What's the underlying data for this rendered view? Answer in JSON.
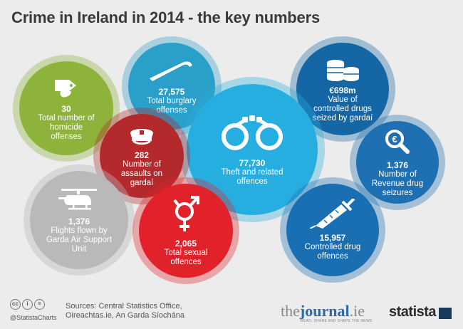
{
  "title": "Crime in Ireland in 2014 - the key numbers",
  "bubbles": {
    "homicide": {
      "value": "30",
      "label": "Total number of homicide offenses",
      "color": "#8db33a",
      "icon": "toe-tag-icon"
    },
    "burglary": {
      "value": "27,575",
      "label": "Total burglary offenses",
      "color": "#2a9fc9",
      "icon": "crowbar-icon"
    },
    "assaults": {
      "value": "282",
      "label": "Number of assaults on gardaí",
      "color": "#b3292c",
      "icon": "police-cap-icon"
    },
    "theft": {
      "value": "77,730",
      "label": "Theft and related offences",
      "color": "#27aee0",
      "icon": "handcuffs-icon"
    },
    "drug_value": {
      "value": "€698m",
      "label": "Value of controlled drugs seized by gardaí",
      "color": "#1566a4",
      "icon": "coins-icon"
    },
    "revenue": {
      "value": "1,376",
      "label": "Number of Revenue drug seizures",
      "color": "#1e70b3",
      "icon": "magnifier-euro-icon"
    },
    "flights": {
      "value": "1,376",
      "label": "Flights flown by Garda Air Support Unit",
      "color": "#b9b9b9",
      "icon": "helicopter-icon"
    },
    "sexual": {
      "value": "2,065",
      "label": "Total sexual offences",
      "color": "#e1222b",
      "icon": "gender-symbol-icon"
    },
    "drug_offences": {
      "value": "15,957",
      "label": "Controlled drug offences",
      "color": "#1a6eb2",
      "icon": "syringe-icon"
    }
  },
  "footer": {
    "sources_line1": "Sources: Central Statistics Office,",
    "sources_line2": "Oireachtas.ie, An Garda Síochána",
    "handle": "@StatistaCharts",
    "journal_pre": "the",
    "journal_main": "journal",
    "journal_post": ".ie",
    "journal_tag": "READ, SHARE AND SHAPE THE NEWS",
    "statista": "statista"
  }
}
